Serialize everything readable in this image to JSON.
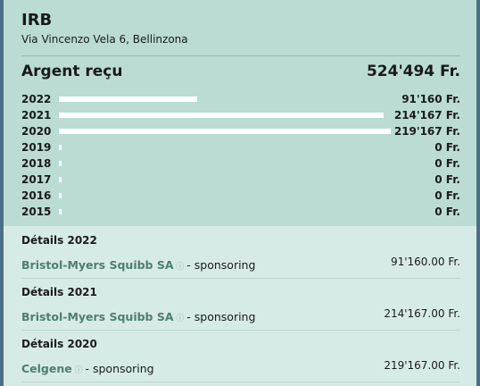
{
  "header": {
    "title": "IRB",
    "address": "Via Vincenzo Vela 6, Bellinzona"
  },
  "summary": {
    "title": "Argent reçu",
    "total": "524'494 Fr."
  },
  "chart_data": {
    "type": "bar",
    "orientation": "horizontal",
    "color": "#ffffff",
    "categories": [
      "2022",
      "2021",
      "2020",
      "2019",
      "2018",
      "2017",
      "2016",
      "2015"
    ],
    "values": [
      91160,
      214167,
      219167,
      0,
      0,
      0,
      0,
      0
    ],
    "value_labels": [
      "91'160 Fr.",
      "214'167 Fr.",
      "219'167 Fr.",
      "0 Fr.",
      "0 Fr.",
      "0 Fr.",
      "0 Fr.",
      "0 Fr."
    ]
  },
  "details": [
    {
      "title": "Détails 2022",
      "items": [
        {
          "company": "Bristol-Myers Squibb SA",
          "type": "- sponsoring",
          "amount": "91'160.00 Fr."
        }
      ]
    },
    {
      "title": "Détails 2021",
      "items": [
        {
          "company": "Bristol-Myers Squibb SA",
          "type": "- sponsoring",
          "amount": "214'167.00 Fr."
        }
      ]
    },
    {
      "title": "Détails 2020",
      "items": [
        {
          "company": "Celgene",
          "type": "- sponsoring",
          "amount": "219'167.00 Fr."
        }
      ]
    }
  ]
}
